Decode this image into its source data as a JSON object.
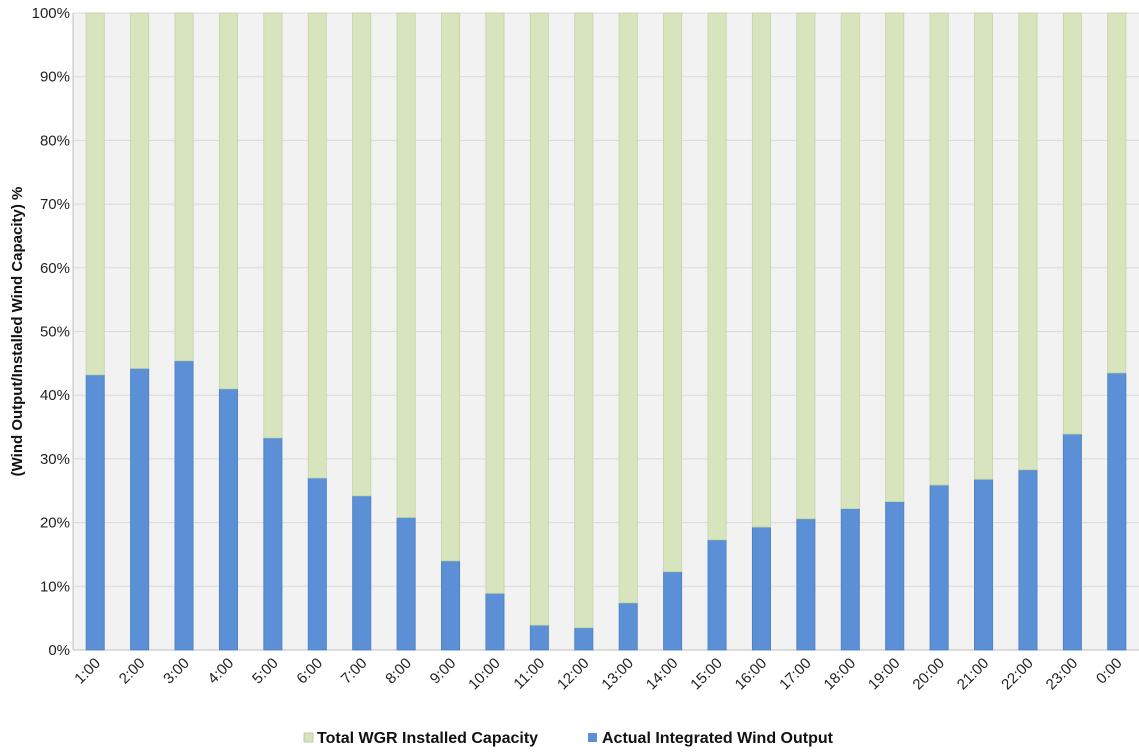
{
  "chart_data": {
    "type": "bar",
    "stacked": true,
    "percent_stacked": true,
    "categories": [
      "1:00",
      "2:00",
      "3:00",
      "4:00",
      "5:00",
      "6:00",
      "7:00",
      "8:00",
      "9:00",
      "10:00",
      "11:00",
      "12:00",
      "13:00",
      "14:00",
      "15:00",
      "16:00",
      "17:00",
      "18:00",
      "19:00",
      "20:00",
      "21:00",
      "22:00",
      "23:00",
      "0:00"
    ],
    "series": [
      {
        "name": "Actual Integrated Wind Output",
        "color": "#5b8fd6",
        "values": [
          43.2,
          44.2,
          45.4,
          41.0,
          33.3,
          27.0,
          24.2,
          20.8,
          14.0,
          8.9,
          3.9,
          3.5,
          7.4,
          12.3,
          17.3,
          19.3,
          20.6,
          22.2,
          23.3,
          25.9,
          26.8,
          28.3,
          33.9,
          43.5
        ]
      },
      {
        "name": "Total WGR Installed Capacity",
        "color": "#d7e4bd",
        "values": [
          56.8,
          55.8,
          54.6,
          59.0,
          66.7,
          73.0,
          75.8,
          79.2,
          86.0,
          91.1,
          96.1,
          96.5,
          92.6,
          87.7,
          82.7,
          80.7,
          79.4,
          77.8,
          76.7,
          74.1,
          73.2,
          71.7,
          66.1,
          56.5
        ]
      }
    ],
    "ylabel": "(Wind Output/Installed Wind Capacity) %",
    "xlabel": "",
    "ylim": [
      0,
      100
    ],
    "yticks": [
      "0%",
      "10%",
      "20%",
      "30%",
      "40%",
      "50%",
      "60%",
      "70%",
      "80%",
      "90%",
      "100%"
    ],
    "grid": true,
    "legend_position": "bottom",
    "legend": [
      "Total WGR Installed Capacity",
      "Actual Integrated Wind Output"
    ],
    "plot_background": "#f2f2f2",
    "gridline_color": "#d9d9d9"
  }
}
